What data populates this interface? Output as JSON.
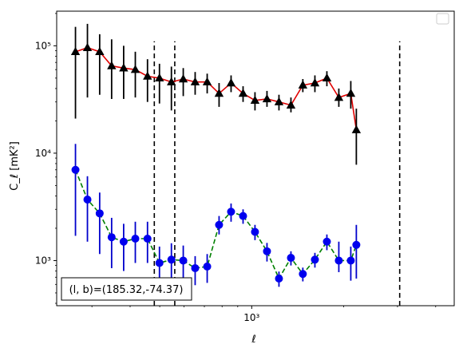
{
  "chart_data": {
    "type": "scatter",
    "title": "",
    "xlabel": "ℓ",
    "ylabel": "C_ℓ  [mK²]",
    "xscale": "log",
    "yscale": "log",
    "xlim": [
      230,
      4600
    ],
    "ylim": [
      380,
      210000
    ],
    "x_tick_labels": [
      {
        "value": 1000,
        "label": "10³"
      }
    ],
    "y_tick_labels": [
      {
        "value": 1000,
        "label": "10³"
      },
      {
        "value": 10000,
        "label": "10⁴"
      },
      {
        "value": 100000,
        "label": "10⁵"
      }
    ],
    "grid": false,
    "legend": {
      "placement": "top-right",
      "entries": []
    },
    "annotation": "(l, b)=(185.32,-74.37)",
    "vlines": [
      {
        "x": 480,
        "ymin": 380,
        "ymax": 110000,
        "style": "dashed",
        "color": "#000000"
      },
      {
        "x": 560,
        "ymin": 380,
        "ymax": 110000,
        "style": "dashed",
        "color": "#000000"
      },
      {
        "x": 3050,
        "ymin": 380,
        "ymax": 110000,
        "style": "dashed",
        "color": "#000000"
      }
    ],
    "series": [
      {
        "marker": "triangle",
        "marker_color": "#000000",
        "line_color": "#e00000",
        "line_style": "solid",
        "error_color": "#000000",
        "points": [
          {
            "x": 265,
            "y": 88000,
            "lo": 21000,
            "hi": 150000
          },
          {
            "x": 290,
            "y": 96000,
            "lo": 33000,
            "hi": 160000
          },
          {
            "x": 318,
            "y": 88000,
            "lo": 35000,
            "hi": 128000
          },
          {
            "x": 348,
            "y": 65000,
            "lo": 32000,
            "hi": 115000
          },
          {
            "x": 381,
            "y": 62000,
            "lo": 32000,
            "hi": 100000
          },
          {
            "x": 416,
            "y": 60000,
            "lo": 33000,
            "hi": 88000
          },
          {
            "x": 456,
            "y": 52000,
            "lo": 30000,
            "hi": 75000
          },
          {
            "x": 499,
            "y": 50000,
            "lo": 29000,
            "hi": 68000
          },
          {
            "x": 546,
            "y": 46000,
            "lo": 25000,
            "hi": 64000
          },
          {
            "x": 597,
            "y": 49000,
            "lo": 34000,
            "hi": 62000
          },
          {
            "x": 653,
            "y": 46000,
            "lo": 35000,
            "hi": 57000
          },
          {
            "x": 715,
            "y": 46000,
            "lo": 36000,
            "hi": 55000
          },
          {
            "x": 782,
            "y": 36000,
            "lo": 27000,
            "hi": 45000
          },
          {
            "x": 856,
            "y": 45000,
            "lo": 37000,
            "hi": 53000
          },
          {
            "x": 937,
            "y": 36000,
            "lo": 30000,
            "hi": 42000
          },
          {
            "x": 1025,
            "y": 31000,
            "lo": 25000,
            "hi": 37000
          },
          {
            "x": 1122,
            "y": 32000,
            "lo": 27000,
            "hi": 38000
          },
          {
            "x": 1228,
            "y": 30000,
            "lo": 25000,
            "hi": 35000
          },
          {
            "x": 1344,
            "y": 28000,
            "lo": 24000,
            "hi": 33000
          },
          {
            "x": 1470,
            "y": 43000,
            "lo": 37000,
            "hi": 49000
          },
          {
            "x": 1610,
            "y": 45000,
            "lo": 37000,
            "hi": 53000
          },
          {
            "x": 1762,
            "y": 50000,
            "lo": 42000,
            "hi": 58000
          },
          {
            "x": 1928,
            "y": 33000,
            "lo": 27000,
            "hi": 40000
          },
          {
            "x": 2110,
            "y": 36000,
            "lo": 26000,
            "hi": 47000
          },
          {
            "x": 2200,
            "y": 16500,
            "lo": 7800,
            "hi": 26000
          }
        ]
      },
      {
        "marker": "circle",
        "marker_color": "#0000ee",
        "line_color": "#008000",
        "line_style": "dashed",
        "error_color": "#0000cc",
        "points": [
          {
            "x": 265,
            "y": 7000,
            "lo": 1700,
            "hi": 12200
          },
          {
            "x": 290,
            "y": 3700,
            "lo": 1500,
            "hi": 6100
          },
          {
            "x": 318,
            "y": 2750,
            "lo": 1150,
            "hi": 4300
          },
          {
            "x": 348,
            "y": 1650,
            "lo": 850,
            "hi": 2500
          },
          {
            "x": 381,
            "y": 1500,
            "lo": 800,
            "hi": 2200
          },
          {
            "x": 416,
            "y": 1600,
            "lo": 950,
            "hi": 2300
          },
          {
            "x": 456,
            "y": 1600,
            "lo": 950,
            "hi": 2300
          },
          {
            "x": 499,
            "y": 950,
            "lo": 580,
            "hi": 1350
          },
          {
            "x": 546,
            "y": 1020,
            "lo": 560,
            "hi": 1450
          },
          {
            "x": 597,
            "y": 1000,
            "lo": 620,
            "hi": 1380
          },
          {
            "x": 653,
            "y": 850,
            "lo": 590,
            "hi": 1100
          },
          {
            "x": 715,
            "y": 880,
            "lo": 620,
            "hi": 1150
          },
          {
            "x": 782,
            "y": 2150,
            "lo": 1750,
            "hi": 2600
          },
          {
            "x": 856,
            "y": 2850,
            "lo": 2300,
            "hi": 3400
          },
          {
            "x": 937,
            "y": 2600,
            "lo": 2200,
            "hi": 3000
          },
          {
            "x": 1025,
            "y": 1850,
            "lo": 1550,
            "hi": 2150
          },
          {
            "x": 1122,
            "y": 1220,
            "lo": 980,
            "hi": 1460
          },
          {
            "x": 1228,
            "y": 680,
            "lo": 570,
            "hi": 790
          },
          {
            "x": 1344,
            "y": 1060,
            "lo": 900,
            "hi": 1220
          },
          {
            "x": 1470,
            "y": 750,
            "lo": 640,
            "hi": 860
          },
          {
            "x": 1610,
            "y": 1020,
            "lo": 860,
            "hi": 1180
          },
          {
            "x": 1762,
            "y": 1500,
            "lo": 1250,
            "hi": 1750
          },
          {
            "x": 1928,
            "y": 1000,
            "lo": 780,
            "hi": 1500
          },
          {
            "x": 2110,
            "y": 1000,
            "lo": 650,
            "hi": 1350
          },
          {
            "x": 2200,
            "y": 1400,
            "lo": 680,
            "hi": 2150
          }
        ]
      }
    ]
  }
}
